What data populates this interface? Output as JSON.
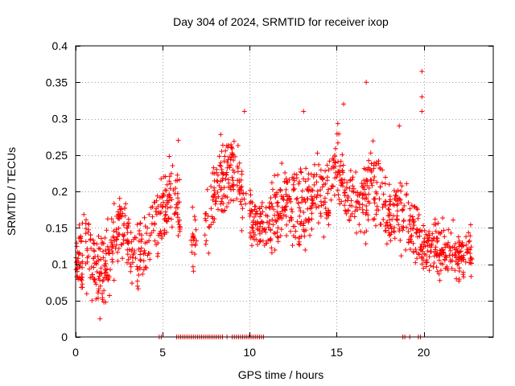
{
  "chart_data": {
    "type": "scatter",
    "title": "Day 304 of 2024, SRMTID for receiver ixop",
    "xlabel": "GPS time / hours",
    "ylabel": "SRMTID / TECUs",
    "xlim": [
      0,
      24
    ],
    "ylim": [
      0,
      0.4
    ],
    "xticks": [
      0,
      5,
      10,
      15,
      20
    ],
    "xtick_labels": [
      "0",
      "5",
      "10",
      "15",
      "20"
    ],
    "yticks": [
      0,
      0.05,
      0.1,
      0.15,
      0.2,
      0.25,
      0.3,
      0.35,
      0.4
    ],
    "ytick_labels": [
      "0",
      "0.05",
      "0.1",
      "0.15",
      "0.2",
      "0.25",
      "0.3",
      "0.35",
      "0.4"
    ],
    "grid": true,
    "marker": "+",
    "series": [
      {
        "name": "SRMTID",
        "color": "#ff0000",
        "envelope": [
          [
            0.0,
            0.09,
            0.05
          ],
          [
            0.5,
            0.11,
            0.06
          ],
          [
            1.0,
            0.1,
            0.06
          ],
          [
            1.5,
            0.09,
            0.06
          ],
          [
            2.0,
            0.11,
            0.06
          ],
          [
            2.5,
            0.16,
            0.05
          ],
          [
            3.0,
            0.13,
            0.05
          ],
          [
            3.5,
            0.11,
            0.05
          ],
          [
            4.0,
            0.12,
            0.05
          ],
          [
            4.5,
            0.15,
            0.05
          ],
          [
            5.0,
            0.17,
            0.06
          ],
          [
            5.5,
            0.2,
            0.06
          ],
          [
            6.5,
            0.13,
            0.04
          ],
          [
            7.5,
            0.14,
            0.05
          ],
          [
            8.0,
            0.21,
            0.05
          ],
          [
            8.5,
            0.22,
            0.06
          ],
          [
            9.0,
            0.23,
            0.05
          ],
          [
            9.5,
            0.2,
            0.05
          ],
          [
            10.0,
            0.16,
            0.04
          ],
          [
            10.5,
            0.15,
            0.04
          ],
          [
            11.0,
            0.16,
            0.05
          ],
          [
            11.5,
            0.17,
            0.05
          ],
          [
            12.0,
            0.19,
            0.05
          ],
          [
            12.5,
            0.18,
            0.05
          ],
          [
            13.0,
            0.17,
            0.06
          ],
          [
            13.5,
            0.19,
            0.06
          ],
          [
            14.0,
            0.2,
            0.05
          ],
          [
            14.5,
            0.19,
            0.06
          ],
          [
            15.0,
            0.24,
            0.06
          ],
          [
            15.5,
            0.2,
            0.05
          ],
          [
            16.0,
            0.19,
            0.05
          ],
          [
            16.5,
            0.18,
            0.05
          ],
          [
            17.0,
            0.22,
            0.06
          ],
          [
            17.5,
            0.19,
            0.06
          ],
          [
            18.0,
            0.16,
            0.05
          ],
          [
            18.5,
            0.17,
            0.05
          ],
          [
            19.0,
            0.16,
            0.05
          ],
          [
            19.5,
            0.15,
            0.05
          ],
          [
            20.0,
            0.12,
            0.04
          ],
          [
            20.5,
            0.13,
            0.04
          ],
          [
            21.0,
            0.12,
            0.04
          ],
          [
            21.5,
            0.12,
            0.04
          ],
          [
            22.0,
            0.11,
            0.04
          ],
          [
            22.5,
            0.12,
            0.04
          ],
          [
            22.8,
            0.11,
            0.04
          ]
        ],
        "gaps": [
          [
            6.0,
            6.6
          ],
          [
            7.0,
            7.4
          ],
          [
            9.8,
            10.0
          ]
        ],
        "outliers": [
          [
            1.4,
            0.025
          ],
          [
            5.9,
            0.27
          ],
          [
            9.7,
            0.31
          ],
          [
            16.7,
            0.35
          ],
          [
            19.9,
            0.365
          ],
          [
            19.9,
            0.33
          ],
          [
            19.9,
            0.31
          ],
          [
            18.6,
            0.29
          ],
          [
            13.1,
            0.31
          ],
          [
            15.4,
            0.32
          ]
        ],
        "zero_band": [
          [
            4.8,
            4.95
          ],
          [
            5.8,
            8.5
          ],
          [
            8.7,
            8.8
          ],
          [
            9.0,
            10.9
          ],
          [
            18.8,
            19.0
          ],
          [
            19.2,
            19.3
          ],
          [
            19.7,
            19.9
          ]
        ]
      }
    ]
  }
}
